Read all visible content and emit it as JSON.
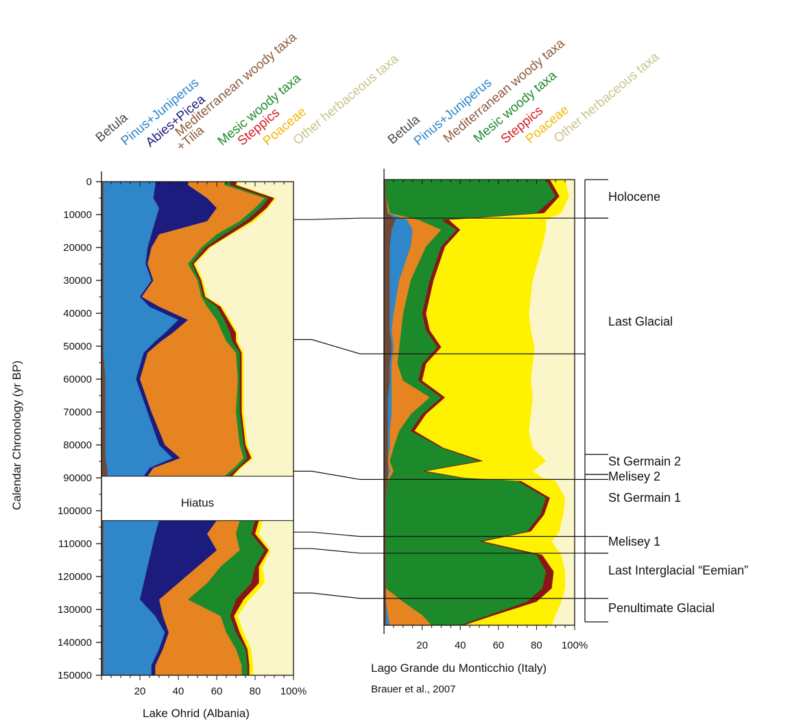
{
  "colors": {
    "Betula": "#6e4a36",
    "Pinus+Juniperus": "#2f86c9",
    "Abies+Picea": "#1c1b7e",
    "Mediterranean woody taxa": "#e68421",
    "Mesic woody taxa": "#1c8a2a",
    "Steppics": "#8b1515",
    "Poaceae": "#fff200",
    "Other herbaceous taxa": "#fbf6c9"
  },
  "label_colors": {
    "Betula": "#4a4a4a",
    "Pinus+Juniperus": "#2a86c8",
    "Abies+Picea": "#1c1b7e",
    "Mediterranean woody taxa": "#8b5a3c",
    "+Tilia": "#8b5a3c",
    "Mesic woody taxa": "#1c8a2a",
    "Steppics": "#d7191c",
    "Poaceae": "#f2b705",
    "Other herbaceous taxa": "#c8c48a"
  },
  "y_axis": {
    "title": "Calendar Chronology (yr BP)",
    "ticks": [
      "0",
      "10000",
      "20000",
      "30000",
      "40000",
      "50000",
      "60000",
      "70000",
      "80000",
      "90000",
      "100000",
      "110000",
      "120000",
      "130000",
      "140000",
      "150000"
    ]
  },
  "x_ticks": [
    "20",
    "40",
    "60",
    "80",
    "100%"
  ],
  "hiatus_label": "Hiatus",
  "credit": "Brauer et al., 2007",
  "periods": [
    "Holocene",
    "Last Glacial",
    "St Germain 2",
    "Melisey 2",
    "St Germain 1",
    "Melisey 1",
    "Last Interglacial “Eemian”",
    "Penultimate Glacial"
  ],
  "chart_data": [
    {
      "type": "area",
      "subtitle": "Lake Ohrid (Albania)",
      "stacking": "percent",
      "ylabel": "Calendar Chronology (yr BP)",
      "ylim": [
        0,
        150000
      ],
      "xlim": [
        0,
        100
      ],
      "y_inverted": true,
      "hiatus": [
        89500,
        103000
      ],
      "column_labels": [
        "Betula",
        "Pinus+Juniperus",
        "Abies+Picea",
        "Mediterranean woody taxa",
        "+Tilia",
        "Mesic woody taxa",
        "Steppics",
        "Poaceae",
        "Other herbaceous taxa"
      ],
      "series_names": [
        "Betula",
        "Pinus+Juniperus",
        "Abies+Picea",
        "Mediterranean woody taxa",
        "Mesic woody taxa",
        "Steppics",
        "Poaceae",
        "Other herbaceous taxa"
      ],
      "y": [
        1000,
        5000,
        8000,
        12000,
        16000,
        20000,
        25000,
        30000,
        35000,
        38000,
        42000,
        46000,
        48500,
        52000,
        60000,
        70000,
        80000,
        84000,
        87000,
        89500,
        103000,
        107000,
        112000,
        117000,
        122000,
        127000,
        132000,
        137000,
        142000,
        147000
      ],
      "cumulative": [
        [
          1,
          28,
          45,
          64,
          67,
          70,
          71,
          86,
          100
        ],
        [
          1,
          27,
          55,
          85,
          87,
          90,
          91,
          95,
          100
        ],
        [
          1,
          30,
          60,
          80,
          83,
          86,
          87,
          93,
          100
        ],
        [
          1,
          28,
          55,
          72,
          75,
          78,
          80,
          90,
          100
        ],
        [
          1,
          26,
          30,
          60,
          64,
          67,
          68,
          85,
          100
        ],
        [
          1,
          24,
          26,
          52,
          54,
          56,
          57,
          79,
          100
        ],
        [
          1,
          23,
          24,
          45,
          47,
          48,
          49,
          74,
          100
        ],
        [
          1,
          26,
          27,
          50,
          51,
          52,
          53,
          72,
          100
        ],
        [
          1,
          20,
          21,
          52,
          53,
          54,
          55,
          77,
          100
        ],
        [
          1,
          25,
          30,
          55,
          60,
          62,
          63,
          80,
          100
        ],
        [
          1,
          40,
          45,
          60,
          64,
          66,
          67,
          85,
          100
        ],
        [
          1,
          33,
          37,
          63,
          67,
          70,
          71,
          88,
          100
        ],
        [
          1,
          28,
          31,
          65,
          68,
          70,
          71,
          85,
          100
        ],
        [
          1,
          22,
          24,
          70,
          72,
          73,
          74,
          86,
          100
        ],
        [
          2,
          18,
          20,
          71,
          72,
          73,
          74,
          87,
          100
        ],
        [
          2,
          24,
          26,
          70,
          72,
          73,
          74,
          86,
          100
        ],
        [
          2,
          30,
          33,
          72,
          74,
          75,
          76,
          87,
          100
        ],
        [
          2,
          37,
          41,
          74,
          76,
          78,
          79,
          88,
          100
        ],
        [
          3,
          25,
          27,
          69,
          71,
          72,
          73,
          85,
          100
        ],
        [
          3,
          22,
          24,
          64,
          66,
          68,
          69,
          82,
          100
        ],
        [
          1,
          30,
          60,
          72,
          80,
          82,
          84,
          93,
          100
        ],
        [
          1,
          28,
          55,
          70,
          78,
          80,
          82,
          91,
          100
        ],
        [
          1,
          26,
          60,
          72,
          85,
          87,
          88,
          93,
          100
        ],
        [
          1,
          24,
          50,
          62,
          80,
          82,
          84,
          91,
          100
        ],
        [
          1,
          22,
          40,
          55,
          78,
          82,
          85,
          92,
          100
        ],
        [
          1,
          20,
          30,
          45,
          70,
          74,
          77,
          90,
          100
        ],
        [
          1,
          28,
          32,
          62,
          67,
          69,
          71,
          86,
          100
        ],
        [
          1,
          33,
          35,
          65,
          70,
          72,
          74,
          87,
          100
        ],
        [
          1,
          30,
          32,
          70,
          75,
          76,
          78,
          88,
          100
        ],
        [
          1,
          26,
          28,
          73,
          76,
          77,
          79,
          89,
          100
        ]
      ]
    },
    {
      "type": "area",
      "subtitle": "Lago Grande du Monticchio (Italy)",
      "stacking": "percent",
      "ylim": [
        0,
        150000
      ],
      "xlim": [
        0,
        100
      ],
      "y_inverted": true,
      "column_labels": [
        "Betula",
        "Pinus+Juniperus",
        "Mediterranean woody taxa",
        "Mesic woody taxa",
        "Steppics",
        "Poaceae",
        "Other herbaceous taxa"
      ],
      "series_names": [
        "Betula",
        "Pinus+Juniperus",
        "Mediterranean woody taxa",
        "Mesic woody taxa",
        "Steppics",
        "Poaceae",
        "Other herbaceous taxa"
      ],
      "y": [
        0,
        5000,
        10000,
        12000,
        15000,
        20000,
        30000,
        40000,
        45000,
        50000,
        55000,
        60000,
        65000,
        70000,
        75000,
        80000,
        84000,
        87000,
        89000,
        90000,
        95000,
        100000,
        105000,
        108000,
        112000,
        117000,
        122000,
        126000,
        130000,
        133000
      ],
      "cumulative": [
        [
          1,
          1,
          1,
          85,
          87,
          95,
          100
        ],
        [
          1,
          1,
          1,
          90,
          92,
          97,
          100
        ],
        [
          2,
          2,
          3,
          80,
          84,
          93,
          100
        ],
        [
          6,
          12,
          18,
          30,
          34,
          85,
          100
        ],
        [
          4,
          15,
          30,
          38,
          40,
          85,
          100
        ],
        [
          3,
          14,
          22,
          30,
          32,
          83,
          100
        ],
        [
          3,
          8,
          14,
          24,
          26,
          78,
          100
        ],
        [
          3,
          5,
          10,
          20,
          22,
          76,
          100
        ],
        [
          3,
          4,
          9,
          22,
          24,
          77,
          100
        ],
        [
          4,
          5,
          8,
          28,
          30,
          79,
          100
        ],
        [
          3,
          4,
          7,
          20,
          22,
          78,
          100
        ],
        [
          3,
          4,
          10,
          18,
          20,
          77,
          100
        ],
        [
          2,
          4,
          24,
          30,
          32,
          78,
          100
        ],
        [
          2,
          4,
          14,
          20,
          22,
          77,
          100
        ],
        [
          2,
          3,
          8,
          14,
          16,
          76,
          100
        ],
        [
          2,
          3,
          5,
          30,
          31,
          78,
          100
        ],
        [
          2,
          2,
          3,
          50,
          52,
          85,
          100
        ],
        [
          2,
          3,
          5,
          20,
          22,
          78,
          100
        ],
        [
          2,
          2,
          3,
          40,
          42,
          83,
          100
        ],
        [
          2,
          2,
          2,
          70,
          72,
          90,
          100
        ],
        [
          1,
          1,
          1,
          85,
          87,
          95,
          100
        ],
        [
          1,
          1,
          1,
          82,
          84,
          94,
          100
        ],
        [
          1,
          1,
          1,
          75,
          77,
          92,
          100
        ],
        [
          1,
          1,
          1,
          50,
          52,
          88,
          100
        ],
        [
          1,
          1,
          1,
          80,
          83,
          93,
          100
        ],
        [
          1,
          1,
          1,
          85,
          89,
          95,
          100
        ],
        [
          1,
          1,
          1,
          83,
          88,
          95,
          100
        ],
        [
          1,
          1,
          10,
          75,
          80,
          93,
          100
        ],
        [
          1,
          2,
          20,
          55,
          58,
          90,
          100
        ],
        [
          1,
          3,
          25,
          40,
          42,
          88,
          100
        ]
      ]
    }
  ],
  "correlations": [
    11500,
    48000,
    88000,
    106500,
    111500,
    125000
  ],
  "correlations_right": [
    11500,
    52000,
    89500,
    106500,
    111500,
    125000
  ],
  "period_boundaries": [
    0,
    11500,
    82000,
    88000,
    89500,
    106500,
    111500,
    125000,
    132000
  ]
}
